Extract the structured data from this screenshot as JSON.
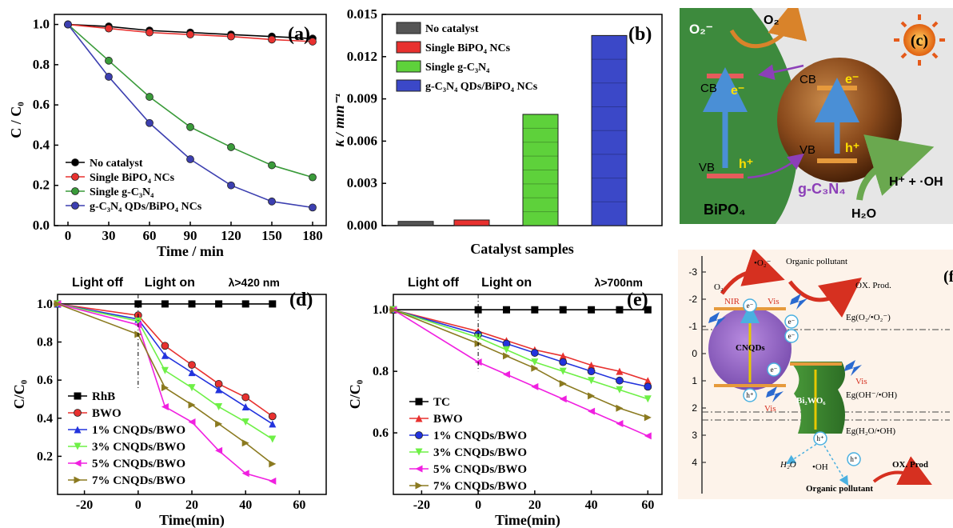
{
  "chart_data": [
    {
      "panel": "(a)",
      "type": "line",
      "xlabel": "Time / min",
      "ylabel": "C / C₀",
      "xticks": [
        0,
        30,
        60,
        90,
        120,
        150,
        180
      ],
      "yticks": [
        "0.0",
        "0.2",
        "0.4",
        "0.6",
        "0.8",
        "1.0"
      ],
      "xlim": [
        -10,
        190
      ],
      "ylim": [
        0,
        1.05
      ],
      "x": [
        0,
        30,
        60,
        90,
        120,
        150,
        180
      ],
      "legend_position": "bottom-left",
      "series": [
        {
          "name": "No catalyst",
          "color": "#000000",
          "values": [
            1.0,
            0.99,
            0.97,
            0.96,
            0.95,
            0.94,
            0.93
          ]
        },
        {
          "name": "Single BiPO₄ NCs",
          "color": "#e8312f",
          "values": [
            1.0,
            0.98,
            0.96,
            0.95,
            0.94,
            0.925,
            0.915
          ]
        },
        {
          "name": "Single g-C₃N₄",
          "color": "#3a9b3a",
          "values": [
            1.0,
            0.82,
            0.64,
            0.49,
            0.39,
            0.3,
            0.24
          ]
        },
        {
          "name": "g-C₃N₄ QDs/BiPO₄ NCs",
          "color": "#3c3fb0",
          "values": [
            1.0,
            0.74,
            0.51,
            0.33,
            0.2,
            0.12,
            0.09
          ]
        }
      ]
    },
    {
      "panel": "(b)",
      "type": "bar",
      "xlabel": "Catalyst samples",
      "ylabel": "k / min⁻¹",
      "yticks": [
        "0.000",
        "0.003",
        "0.006",
        "0.009",
        "0.012",
        "0.015"
      ],
      "ylim": [
        0,
        0.015
      ],
      "categories": [
        "No catalyst",
        "Single BiPO₄ NCs",
        "Single g-C₃N₄",
        "g-C₃N₄ QDs/BiPO₄ NCs"
      ],
      "values": [
        0.0003,
        0.0004,
        0.0079,
        0.0135
      ],
      "colors": [
        "#555555",
        "#e8312f",
        "#5ed13b",
        "#3b48c8"
      ],
      "legend_position": "top-left"
    },
    {
      "panel": "(d)",
      "type": "line",
      "xlabel": "Time(min)",
      "ylabel": "C/C₀",
      "xticks": [
        -20,
        0,
        20,
        40,
        60
      ],
      "yticks": [
        "0.2",
        "0.4",
        "0.6",
        "0.8",
        "1.0"
      ],
      "xlim": [
        -30,
        70
      ],
      "ylim": [
        0,
        1.05
      ],
      "annotations": [
        "Light off",
        "Light on",
        "λ>420 nm"
      ],
      "x": [
        -30,
        0,
        10,
        20,
        30,
        40,
        50
      ],
      "legend_position": "bottom-left",
      "series": [
        {
          "name": "RhB",
          "color": "#000000",
          "values": [
            1.0,
            1.0,
            1.0,
            1.0,
            1.0,
            1.0,
            1.0
          ]
        },
        {
          "name": "BWO",
          "color": "#e8312f",
          "values": [
            1.0,
            0.94,
            0.78,
            0.68,
            0.58,
            0.51,
            0.41
          ]
        },
        {
          "name": "1% CNQDs/BWO",
          "color": "#2233dd",
          "values": [
            1.0,
            0.92,
            0.73,
            0.64,
            0.55,
            0.46,
            0.37
          ]
        },
        {
          "name": "3% CNQDs/BWO",
          "color": "#6ef046",
          "values": [
            1.0,
            0.91,
            0.65,
            0.56,
            0.46,
            0.38,
            0.29
          ]
        },
        {
          "name": "5% CNQDs/BWO",
          "color": "#f020e0",
          "values": [
            1.0,
            0.89,
            0.46,
            0.38,
            0.23,
            0.11,
            0.07
          ]
        },
        {
          "name": "7% CNQDs/BWO",
          "color": "#8b7a20",
          "values": [
            1.0,
            0.84,
            0.56,
            0.47,
            0.37,
            0.27,
            0.16
          ]
        }
      ]
    },
    {
      "panel": "(e)",
      "type": "line",
      "xlabel": "Time(min)",
      "ylabel": "C/C₀",
      "xticks": [
        -20,
        0,
        20,
        40,
        60
      ],
      "yticks": [
        "0.6",
        "0.8",
        "1.0"
      ],
      "xlim": [
        -30,
        65
      ],
      "ylim": [
        0.4,
        1.05
      ],
      "annotations": [
        "Light off",
        "Light on",
        "λ>700nm"
      ],
      "x": [
        -30,
        0,
        10,
        20,
        30,
        40,
        50,
        60
      ],
      "legend_position": "bottom-left",
      "series": [
        {
          "name": "TC",
          "color": "#000000",
          "values": [
            1.0,
            1.0,
            1.0,
            1.0,
            1.0,
            1.0,
            1.0,
            1.0
          ]
        },
        {
          "name": "BWO",
          "color": "#e8312f",
          "values": [
            1.0,
            0.93,
            0.9,
            0.87,
            0.85,
            0.82,
            0.8,
            0.77
          ]
        },
        {
          "name": "1% CNQDs/BWO",
          "color": "#2233dd",
          "values": [
            1.0,
            0.92,
            0.89,
            0.86,
            0.83,
            0.8,
            0.77,
            0.75
          ]
        },
        {
          "name": "3% CNQDs/BWO",
          "color": "#6ef046",
          "values": [
            1.0,
            0.91,
            0.87,
            0.83,
            0.8,
            0.77,
            0.74,
            0.71
          ]
        },
        {
          "name": "5% CNQDs/BWO",
          "color": "#f020e0",
          "values": [
            1.0,
            0.83,
            0.79,
            0.75,
            0.71,
            0.67,
            0.63,
            0.59
          ]
        },
        {
          "name": "7% CNQDs/BWO",
          "color": "#8b7a20",
          "values": [
            1.0,
            0.89,
            0.85,
            0.81,
            0.76,
            0.72,
            0.68,
            0.65
          ]
        }
      ]
    }
  ],
  "diagram_c": {
    "panel": "(c)",
    "labels": {
      "o2m": "O₂⁻",
      "o2": "O₂",
      "cb_left": "CB",
      "e_left": "e⁻",
      "vb_left": "VB",
      "h_left": "h⁺",
      "cb_right": "CB",
      "e_right": "e⁻",
      "vb_right": "VB",
      "h_right": "h⁺",
      "bipo4": "BiPO₄",
      "gcn": "g-C₃N₄",
      "hoh": "H⁺ + ·OH",
      "h2o": "H₂O"
    }
  },
  "diagram_f": {
    "panel": "(f)",
    "yticks": [
      "-3",
      "-2",
      "-1",
      "0",
      "1",
      "2",
      "3",
      "4"
    ],
    "labels": {
      "o2rad": "•O₂⁻",
      "org1": "Organic pollutant",
      "o2": "O₂",
      "oxprod1": "OX. Prod.",
      "nir": "NIR",
      "vis1": "Vis",
      "eg1": "Eg(O₂/•O₂⁻)",
      "cnqds": "CNQDs",
      "vis2": "Vis",
      "eg2": "Eg(OH⁻/•OH)",
      "bwo": "Bi₂WO₆",
      "vis3": "Vis",
      "eg3": "Eg(H₂O/•OH)",
      "h2o": "H₂O",
      "oh": "•OH",
      "org2": "Organic pollutant",
      "oxprod2": "OX. Prod",
      "e": "e⁻",
      "h": "h⁺"
    }
  }
}
